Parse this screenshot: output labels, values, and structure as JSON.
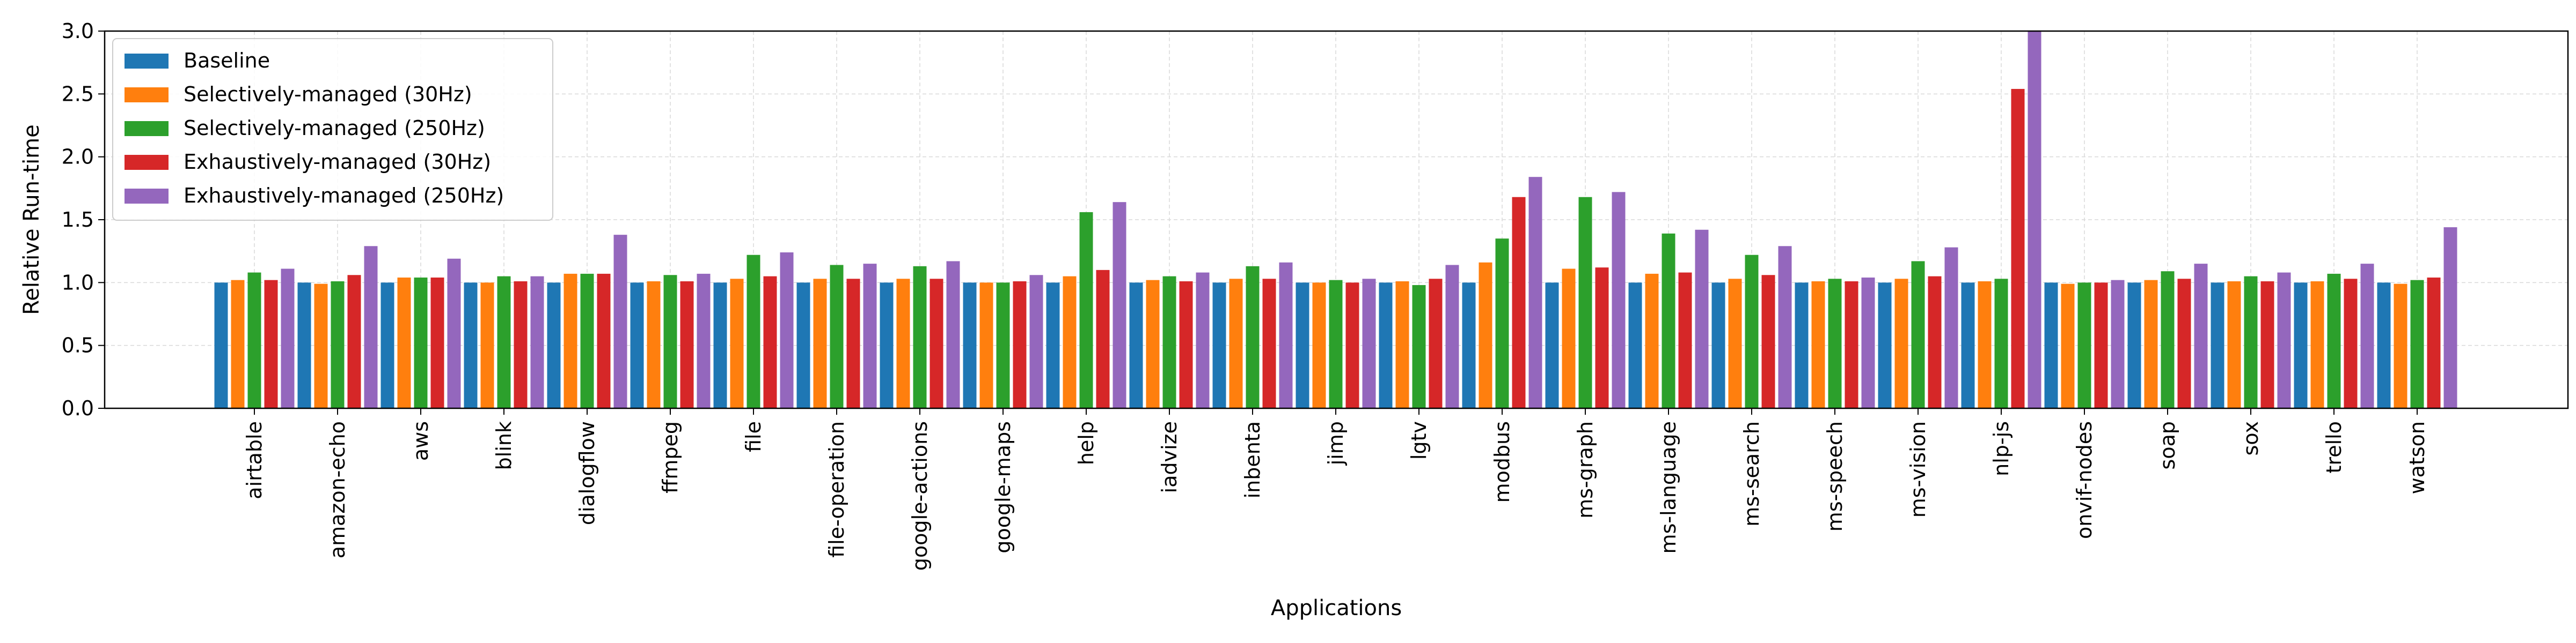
{
  "chart_data": {
    "type": "bar",
    "xlabel": "Applications",
    "ylabel": "Relative Run-time",
    "ylim": [
      0,
      3.0
    ],
    "yticks": [
      "0.0",
      "0.5",
      "1.0",
      "1.5",
      "2.0",
      "2.5",
      "3.0"
    ],
    "grid": true,
    "legend_position": "top-left",
    "categories": [
      "airtable",
      "amazon-echo",
      "aws",
      "blink",
      "dialogflow",
      "ffmpeg",
      "file",
      "file-operation",
      "google-actions",
      "google-maps",
      "help",
      "iadvize",
      "inbenta",
      "jimp",
      "lgtv",
      "modbus",
      "ms-graph",
      "ms-language",
      "ms-search",
      "ms-speech",
      "ms-vision",
      "nlp-js",
      "onvif-nodes",
      "soap",
      "sox",
      "trello",
      "watson"
    ],
    "series": [
      {
        "name": "Baseline",
        "color": "#1f77b4",
        "values": [
          1.0,
          1.0,
          1.0,
          1.0,
          1.0,
          1.0,
          1.0,
          1.0,
          1.0,
          1.0,
          1.0,
          1.0,
          1.0,
          1.0,
          1.0,
          1.0,
          1.0,
          1.0,
          1.0,
          1.0,
          1.0,
          1.0,
          1.0,
          1.0,
          1.0,
          1.0,
          1.0
        ]
      },
      {
        "name": "Selectively-managed (30Hz)",
        "color": "#ff7f0e",
        "values": [
          1.02,
          0.99,
          1.04,
          1.0,
          1.07,
          1.01,
          1.03,
          1.03,
          1.03,
          1.0,
          1.05,
          1.02,
          1.03,
          1.0,
          1.01,
          1.16,
          1.11,
          1.07,
          1.03,
          1.01,
          1.03,
          1.01,
          0.99,
          1.02,
          1.01,
          1.01,
          0.99
        ]
      },
      {
        "name": "Selectively-managed (250Hz)",
        "color": "#2ca02c",
        "values": [
          1.08,
          1.01,
          1.04,
          1.05,
          1.07,
          1.06,
          1.22,
          1.14,
          1.13,
          1.0,
          1.56,
          1.05,
          1.13,
          1.02,
          0.98,
          1.35,
          1.68,
          1.39,
          1.22,
          1.03,
          1.17,
          1.03,
          1.0,
          1.09,
          1.05,
          1.07,
          1.02
        ]
      },
      {
        "name": "Exhaustively-managed (30Hz)",
        "color": "#d62728",
        "values": [
          1.02,
          1.06,
          1.04,
          1.01,
          1.07,
          1.01,
          1.05,
          1.03,
          1.03,
          1.01,
          1.1,
          1.01,
          1.03,
          1.0,
          1.03,
          1.68,
          1.12,
          1.08,
          1.06,
          1.01,
          1.05,
          2.54,
          1.0,
          1.03,
          1.01,
          1.03,
          1.04
        ]
      },
      {
        "name": "Exhaustively-managed (250Hz)",
        "color": "#9467bd",
        "values": [
          1.11,
          1.29,
          1.19,
          1.05,
          1.38,
          1.07,
          1.24,
          1.15,
          1.17,
          1.06,
          1.64,
          1.08,
          1.16,
          1.03,
          1.14,
          1.84,
          1.72,
          1.42,
          1.29,
          1.04,
          1.28,
          3.0,
          1.02,
          1.15,
          1.08,
          1.15,
          1.44
        ]
      }
    ]
  }
}
